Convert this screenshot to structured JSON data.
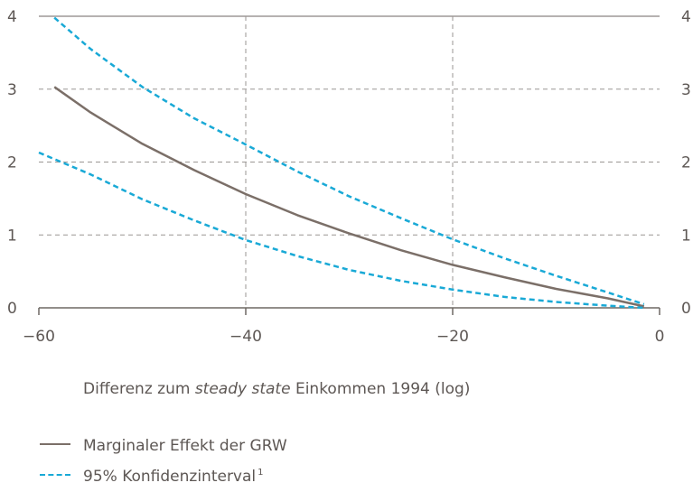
{
  "chart_data": {
    "type": "line",
    "xlabel_parts": [
      "Differenz zum ",
      "steady state",
      " Einkommen 1994 (log)"
    ],
    "xlim": [
      -60,
      0
    ],
    "ylim": [
      0,
      4
    ],
    "xticks": [
      "-60",
      "-40",
      "-20",
      "0"
    ],
    "yticks": [
      "0",
      "1",
      "2",
      "3",
      "4"
    ],
    "grid": true,
    "legend_position": "bottom-left",
    "series": [
      {
        "name": "Marginaler Effekt der GRW",
        "color": "#7b6f68",
        "dash": "solid",
        "x": [
          -58.5,
          -55,
          -50,
          -45,
          -40,
          -35,
          -30,
          -25,
          -20,
          -15,
          -10,
          -5,
          -1.5
        ],
        "y": [
          3.03,
          2.68,
          2.25,
          1.89,
          1.56,
          1.27,
          1.02,
          0.79,
          0.59,
          0.42,
          0.26,
          0.13,
          0.02
        ]
      },
      {
        "name": "95% Konfidenzinterval",
        "name_sup": "1",
        "color": "#19a9d6",
        "dash": "dashed",
        "x": [
          -58.5,
          -55,
          -50,
          -45,
          -40,
          -35,
          -30,
          -25,
          -20,
          -15,
          -10,
          -5,
          -1.5
        ],
        "y": [
          3.98,
          3.55,
          3.03,
          2.6,
          2.24,
          1.87,
          1.53,
          1.23,
          0.94,
          0.68,
          0.44,
          0.21,
          0.05
        ]
      },
      {
        "name": "",
        "color": "#19a9d6",
        "dash": "dashed",
        "x": [
          -60,
          -55,
          -50,
          -45,
          -40,
          -35,
          -30,
          -25,
          -20,
          -15,
          -10,
          -5,
          -1.5
        ],
        "y": [
          2.13,
          1.83,
          1.49,
          1.2,
          0.93,
          0.71,
          0.52,
          0.37,
          0.25,
          0.15,
          0.08,
          0.03,
          0.0
        ]
      }
    ]
  }
}
